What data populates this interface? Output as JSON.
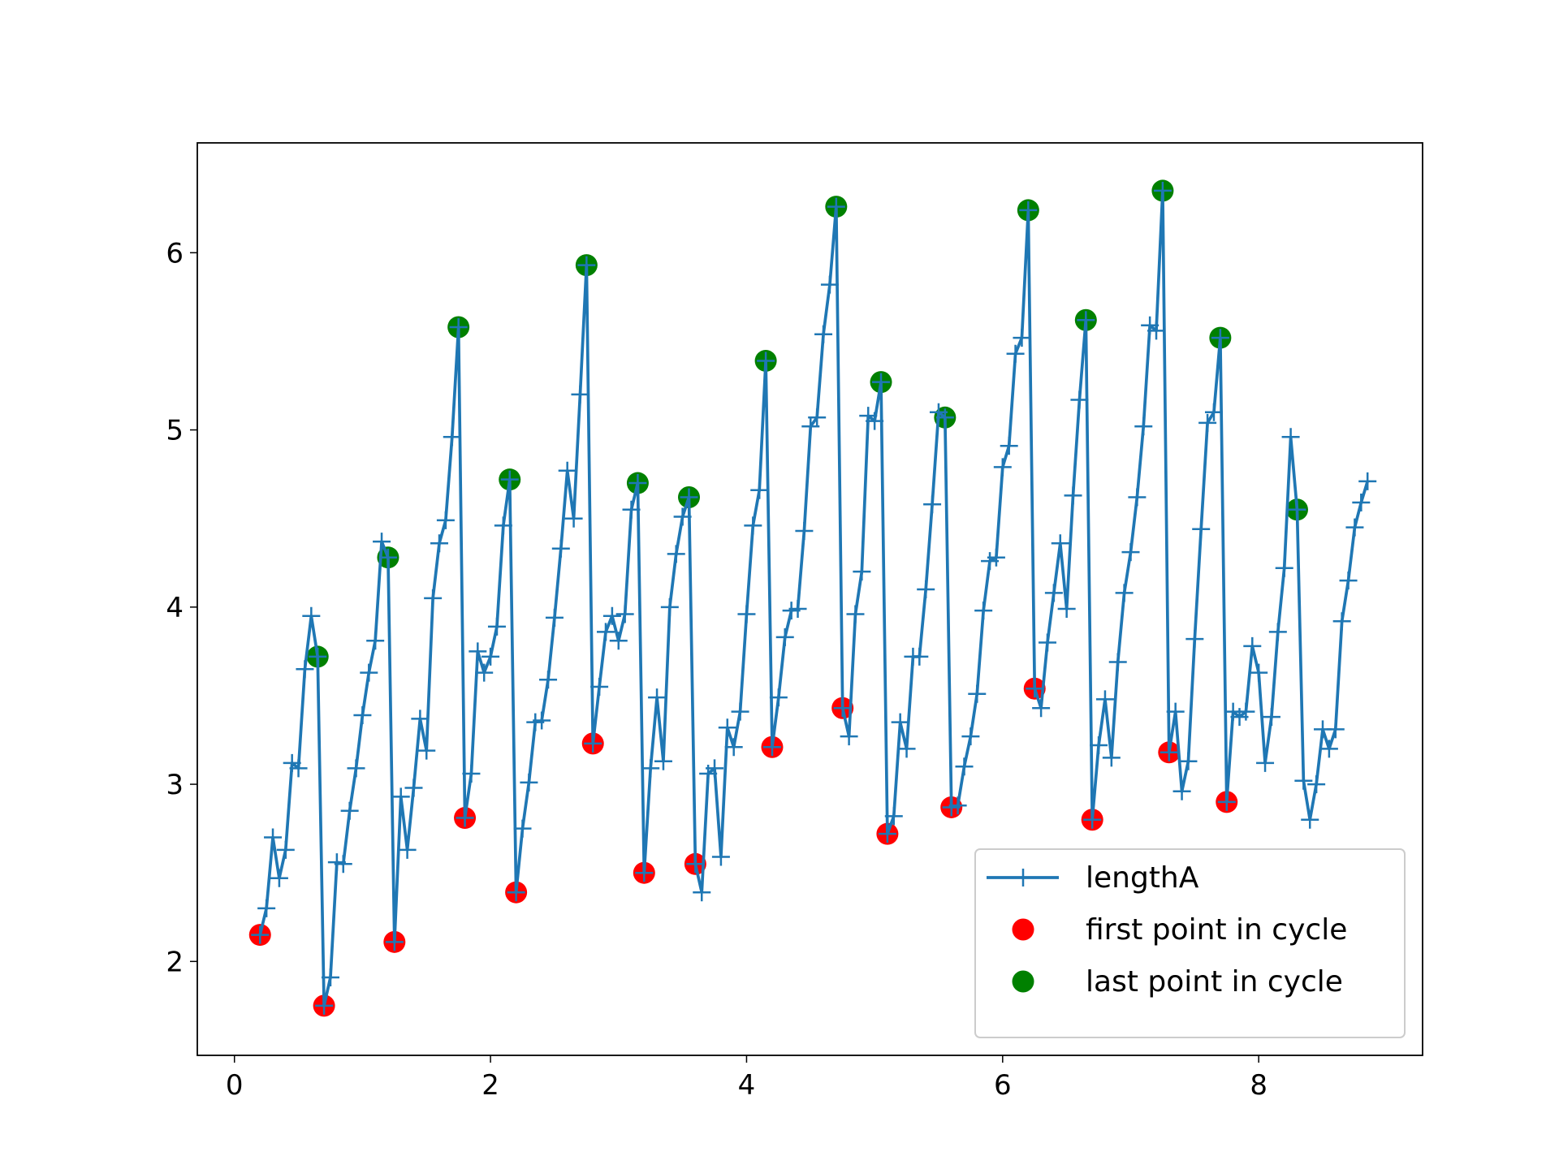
{
  "chart_data": {
    "type": "line",
    "xlim": [
      -0.29,
      9.28
    ],
    "ylim": [
      1.47,
      6.62
    ],
    "xticks": [
      0,
      2,
      4,
      6,
      8
    ],
    "yticks": [
      2,
      3,
      4,
      5,
      6
    ],
    "legend": "lower right",
    "series": [
      {
        "name": "lengthA",
        "color": "#1f77b4",
        "type": "line",
        "marker": "+",
        "x": [
          0.2,
          0.25,
          0.3,
          0.35,
          0.4,
          0.45,
          0.5,
          0.55,
          0.6,
          0.65,
          0.7,
          0.75,
          0.8,
          0.85,
          0.9,
          0.95,
          1.0,
          1.05,
          1.1,
          1.15,
          1.2,
          1.25,
          1.3,
          1.35,
          1.4,
          1.45,
          1.5,
          1.55,
          1.6,
          1.65,
          1.7,
          1.75,
          1.8,
          1.85,
          1.9,
          1.95,
          2.0,
          2.05,
          2.1,
          2.15,
          2.2,
          2.25,
          2.3,
          2.35,
          2.4,
          2.45,
          2.5,
          2.55,
          2.6,
          2.65,
          2.7,
          2.75,
          2.8,
          2.85,
          2.9,
          2.95,
          3.0,
          3.05,
          3.1,
          3.15,
          3.2,
          3.25,
          3.3,
          3.35,
          3.4,
          3.45,
          3.5,
          3.55,
          3.6,
          3.65,
          3.7,
          3.75,
          3.8,
          3.85,
          3.9,
          3.95,
          4.0,
          4.05,
          4.1,
          4.15,
          4.2,
          4.25,
          4.3,
          4.35,
          4.4,
          4.45,
          4.5,
          4.55,
          4.6,
          4.65,
          4.7,
          4.75,
          4.8,
          4.85,
          4.9,
          4.95,
          5.0,
          5.05,
          5.1,
          5.15,
          5.2,
          5.25,
          5.3,
          5.35,
          5.4,
          5.45,
          5.5,
          5.55,
          5.6,
          5.65,
          5.7,
          5.75,
          5.8,
          5.85,
          5.9,
          5.95,
          6.0,
          6.05,
          6.1,
          6.15,
          6.2,
          6.25,
          6.3,
          6.35,
          6.4,
          6.45,
          6.5,
          6.55,
          6.6,
          6.65,
          6.7,
          6.75,
          6.8,
          6.85,
          6.9,
          6.95,
          7.0,
          7.05,
          7.1,
          7.15,
          7.2,
          7.25,
          7.3,
          7.35,
          7.4,
          7.45,
          7.5,
          7.55,
          7.6,
          7.65,
          7.7,
          7.75,
          7.8,
          7.85,
          7.9,
          7.95,
          8.0,
          8.05,
          8.1,
          8.15,
          8.2,
          8.25,
          8.3,
          8.35,
          8.4,
          8.45,
          8.5,
          8.55,
          8.6,
          8.65,
          8.7,
          8.75,
          8.8,
          8.85
        ],
        "values": [
          2.15,
          2.3,
          2.7,
          2.47,
          2.63,
          3.12,
          3.09,
          3.65,
          3.95,
          3.72,
          1.75,
          1.91,
          2.56,
          2.55,
          2.85,
          3.09,
          3.39,
          3.63,
          3.81,
          4.37,
          4.28,
          2.11,
          2.93,
          2.63,
          2.98,
          3.37,
          3.19,
          4.05,
          4.36,
          4.49,
          4.96,
          5.58,
          2.81,
          3.06,
          3.75,
          3.63,
          3.72,
          3.89,
          4.46,
          4.72,
          2.39,
          2.75,
          3.01,
          3.35,
          3.36,
          3.59,
          3.94,
          4.33,
          4.77,
          4.5,
          5.2,
          5.93,
          3.23,
          3.55,
          3.86,
          3.95,
          3.81,
          3.96,
          4.55,
          4.7,
          2.5,
          3.09,
          3.49,
          3.13,
          4.0,
          4.3,
          4.51,
          4.62,
          2.55,
          2.39,
          3.06,
          3.09,
          2.59,
          3.32,
          3.21,
          3.41,
          3.96,
          4.46,
          4.66,
          5.39,
          3.21,
          3.49,
          3.83,
          3.98,
          3.99,
          4.43,
          5.02,
          5.07,
          5.54,
          5.82,
          6.26,
          3.43,
          3.27,
          3.96,
          4.2,
          5.08,
          5.05,
          5.27,
          2.72,
          2.82,
          3.35,
          3.2,
          3.72,
          3.72,
          4.1,
          4.58,
          5.1,
          5.07,
          2.87,
          2.88,
          3.1,
          3.27,
          3.51,
          3.98,
          4.26,
          4.28,
          4.79,
          4.91,
          5.43,
          5.52,
          6.24,
          3.54,
          3.43,
          3.8,
          4.08,
          4.36,
          3.99,
          4.63,
          5.17,
          5.62,
          2.8,
          3.22,
          3.48,
          3.15,
          3.69,
          4.08,
          4.31,
          4.62,
          5.02,
          5.59,
          5.56,
          6.35,
          3.18,
          3.41,
          2.96,
          3.13,
          3.82,
          4.44,
          5.04,
          5.1,
          5.52,
          2.9,
          3.41,
          3.38,
          3.41,
          3.78,
          3.63,
          3.12,
          3.38,
          3.86,
          4.22,
          4.96,
          4.55,
          3.02,
          2.8,
          3.0,
          3.31,
          3.2,
          3.31,
          3.92,
          4.15,
          4.45,
          4.59,
          4.71
        ]
      },
      {
        "name": "first point in cycle",
        "color": "#ff0000",
        "type": "scatter",
        "x": [
          0.2,
          0.7,
          1.25,
          1.8,
          2.2,
          2.8,
          3.2,
          3.6,
          4.2,
          4.75,
          5.1,
          5.6,
          6.25,
          6.7,
          7.3,
          7.75
        ],
        "values": [
          2.15,
          1.75,
          2.11,
          2.81,
          2.39,
          3.23,
          2.5,
          2.55,
          3.21,
          3.43,
          2.72,
          2.87,
          3.54,
          2.8,
          3.18,
          2.9
        ]
      },
      {
        "name": "last point in cycle",
        "color": "#008000",
        "type": "scatter",
        "x": [
          0.65,
          1.2,
          1.75,
          2.15,
          2.75,
          3.15,
          3.55,
          4.15,
          4.7,
          5.05,
          5.55,
          6.2,
          6.65,
          7.25,
          7.7,
          8.3
        ],
        "values": [
          3.72,
          4.28,
          5.58,
          4.72,
          5.93,
          4.7,
          4.62,
          5.39,
          6.26,
          5.27,
          5.07,
          6.24,
          5.62,
          6.35,
          5.52,
          4.55
        ]
      }
    ]
  }
}
